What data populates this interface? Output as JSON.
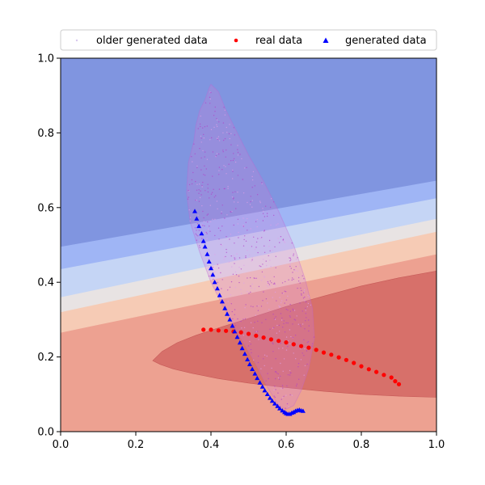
{
  "chart_data": {
    "type": "scatter",
    "title": "",
    "xlabel": "",
    "ylabel": "",
    "xlim": [
      0.0,
      1.0
    ],
    "ylim": [
      0.0,
      1.0
    ],
    "xticks": [
      "0.0",
      "0.2",
      "0.4",
      "0.6",
      "0.8",
      "1.0"
    ],
    "yticks": [
      "0.0",
      "0.2",
      "0.4",
      "0.6",
      "0.8",
      "1.0"
    ],
    "grid": false,
    "legend_placement": "top-center, above plot",
    "legend": [
      {
        "label": "older generated data",
        "marker": "dot",
        "color": "#d8c8ee"
      },
      {
        "label": "real data",
        "marker": "circle",
        "color": "#ff0000"
      },
      {
        "label": "generated data",
        "marker": "triangle",
        "color": "#0000ff"
      }
    ],
    "background_contour": {
      "description": "discriminator decision surface, coolwarm colormap",
      "bands": [
        {
          "level": "high",
          "color": "#8095e0"
        },
        {
          "level": "4",
          "color": "#9fb5f5"
        },
        {
          "level": "3",
          "color": "#c5d5f5"
        },
        {
          "level": "2",
          "color": "#e8e3e3"
        },
        {
          "level": "1",
          "color": "#f6cbb5"
        },
        {
          "level": "low",
          "color": "#eda191"
        },
        {
          "level": "lowest",
          "color": "#d7706a"
        }
      ]
    },
    "series": [
      {
        "name": "real data",
        "color": "#ff0000",
        "marker": "circle",
        "x": [
          0.38,
          0.4,
          0.42,
          0.44,
          0.46,
          0.48,
          0.5,
          0.52,
          0.54,
          0.56,
          0.58,
          0.6,
          0.62,
          0.64,
          0.66,
          0.68,
          0.7,
          0.72,
          0.74,
          0.76,
          0.78,
          0.8,
          0.82,
          0.84,
          0.86,
          0.88,
          0.89,
          0.9
        ],
        "y": [
          0.273,
          0.273,
          0.271,
          0.27,
          0.268,
          0.266,
          0.262,
          0.257,
          0.252,
          0.247,
          0.243,
          0.239,
          0.234,
          0.229,
          0.225,
          0.219,
          0.212,
          0.206,
          0.199,
          0.192,
          0.184,
          0.175,
          0.167,
          0.16,
          0.152,
          0.145,
          0.135,
          0.127
        ]
      },
      {
        "name": "generated data",
        "color": "#0000ff",
        "marker": "triangle",
        "x": [
          0.357,
          0.362,
          0.368,
          0.375,
          0.38,
          0.384,
          0.39,
          0.395,
          0.4,
          0.405,
          0.41,
          0.417,
          0.423,
          0.43,
          0.437,
          0.443,
          0.45,
          0.457,
          0.463,
          0.47,
          0.477,
          0.483,
          0.49,
          0.497,
          0.503,
          0.51,
          0.517,
          0.523,
          0.53,
          0.537,
          0.543,
          0.55,
          0.557,
          0.563,
          0.57,
          0.577,
          0.583,
          0.59,
          0.596,
          0.6,
          0.605,
          0.61,
          0.615,
          0.62,
          0.625,
          0.63,
          0.635,
          0.64,
          0.645
        ],
        "y": [
          0.59,
          0.57,
          0.55,
          0.53,
          0.51,
          0.495,
          0.475,
          0.455,
          0.437,
          0.42,
          0.4,
          0.383,
          0.365,
          0.348,
          0.33,
          0.315,
          0.3,
          0.283,
          0.268,
          0.253,
          0.238,
          0.223,
          0.208,
          0.193,
          0.18,
          0.167,
          0.155,
          0.143,
          0.131,
          0.12,
          0.11,
          0.1,
          0.09,
          0.082,
          0.075,
          0.068,
          0.062,
          0.056,
          0.052,
          0.049,
          0.047,
          0.047,
          0.05,
          0.052,
          0.055,
          0.057,
          0.058,
          0.056,
          0.055
        ]
      },
      {
        "name": "older generated data",
        "color": "#c060d0",
        "marker": "dot",
        "outline": {
          "x": [
            0.4,
            0.42,
            0.44,
            0.47,
            0.5,
            0.54,
            0.58,
            0.62,
            0.65,
            0.67,
            0.675,
            0.66,
            0.64,
            0.62,
            0.6,
            0.58,
            0.55,
            0.52,
            0.48,
            0.44,
            0.4,
            0.37,
            0.345,
            0.335,
            0.34,
            0.355,
            0.36,
            0.37,
            0.385,
            0.395
          ],
          "y": [
            0.93,
            0.91,
            0.86,
            0.8,
            0.74,
            0.67,
            0.59,
            0.5,
            0.41,
            0.33,
            0.25,
            0.17,
            0.11,
            0.07,
            0.06,
            0.07,
            0.12,
            0.18,
            0.25,
            0.32,
            0.4,
            0.48,
            0.56,
            0.64,
            0.72,
            0.78,
            0.82,
            0.86,
            0.89,
            0.92
          ]
        }
      }
    ]
  }
}
